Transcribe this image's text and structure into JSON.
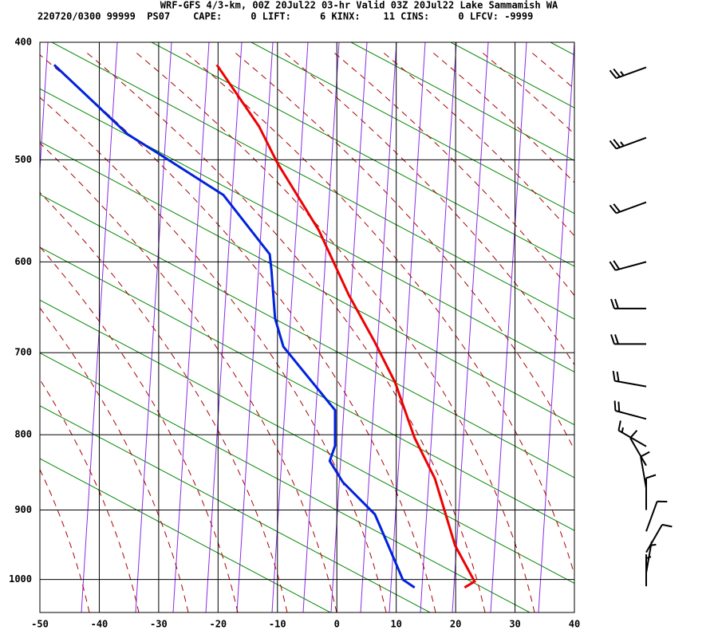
{
  "header": {
    "title": "WRF-GFS 4/3-km, 00Z 20Jul22 03-hr Valid 03Z 20Jul22 Lake Sammamish WA",
    "subtitle": "220720/0300 99999  PS07    CAPE:     0 LIFT:     6 KINX:    11 CINS:     0 LFCV: -9999"
  },
  "chart_data": {
    "type": "skewt",
    "xlim": [
      -50,
      40
    ],
    "xticks": [
      -50,
      -40,
      -30,
      -20,
      -10,
      0,
      10,
      20,
      30,
      40
    ],
    "ylim": [
      400,
      1050
    ],
    "yticks": [
      400,
      500,
      600,
      700,
      800,
      900,
      1000
    ],
    "grid": true,
    "series": [
      {
        "color": "#ee0000",
        "x": [
          -20.2,
          -13.1,
          -10.0,
          -3.0,
          2.0,
          6.4,
          9.8,
          13.1,
          16.5,
          19.9,
          23.2,
          21.5
        ],
        "y": [
          418,
          470,
          503,
          568,
          635,
          688,
          735,
          804,
          857,
          950,
          1003,
          1012
        ]
      },
      {
        "color": "#0022dd",
        "x": [
          -47.6,
          -35.2,
          -29.8,
          -19.1,
          -11.3,
          -11.0,
          -10.4,
          -9.0,
          -0.3,
          -0.3,
          -1.2,
          1.0,
          6.4,
          7.8,
          11.1,
          13.1
        ],
        "y": [
          418,
          477,
          495,
          533,
          592,
          609,
          661,
          693,
          769,
          814,
          834,
          862,
          906,
          933,
          1000,
          1012
        ]
      }
    ],
    "winds": {
      "color": "#000000",
      "pressure": [
        420,
        480,
        540,
        600,
        650,
        690,
        740,
        780,
        815,
        840,
        870,
        900,
        930,
        960,
        990,
        1010
      ],
      "direction": [
        250,
        250,
        250,
        255,
        270,
        270,
        280,
        285,
        300,
        330,
        350,
        0,
        20,
        30,
        10,
        0
      ],
      "speed": [
        25,
        25,
        20,
        20,
        20,
        20,
        20,
        20,
        15,
        10,
        10,
        10,
        10,
        10,
        5,
        5
      ]
    }
  }
}
